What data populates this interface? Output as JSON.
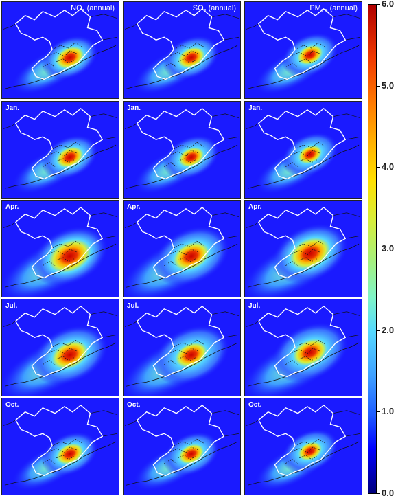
{
  "column_titles": [
    {
      "base": "NO",
      "sub": "2",
      "suffix": " (annual)"
    },
    {
      "base": "SO",
      "sub": "2",
      "suffix": " (annual)"
    },
    {
      "base": "PM",
      "sub": "2.5",
      "suffix": " (annual)"
    }
  ],
  "row_labels": [
    "",
    "Jan.",
    "Apr.",
    "Jul.",
    "Oct."
  ],
  "colorbar": {
    "ticks": [
      "6.0",
      "5.0",
      "4.0",
      "3.0",
      "2.0",
      "1.0",
      "0.0"
    ],
    "min": 0,
    "max": 6,
    "colors": {
      "low": "#0000ff",
      "mid": "#ffe000",
      "high": "#b00000"
    }
  },
  "hotspot_intensity": [
    [
      0.9,
      0.85,
      0.8
    ],
    [
      0.85,
      0.8,
      0.75
    ],
    [
      1.0,
      0.85,
      0.95
    ],
    [
      0.85,
      0.75,
      0.8
    ],
    [
      0.85,
      0.8,
      0.75
    ]
  ]
}
